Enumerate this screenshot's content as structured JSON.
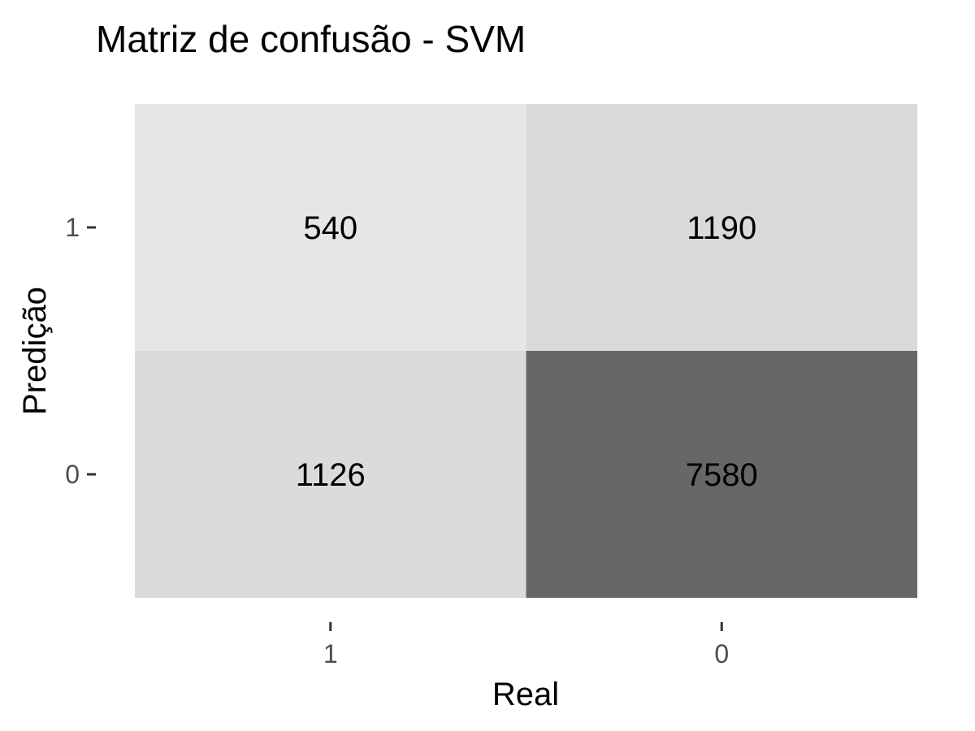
{
  "chart_data": {
    "type": "heatmap",
    "title": "Matriz de confusão - SVM",
    "xlabel": "Real",
    "ylabel": "Predição",
    "x_categories": [
      "1",
      "0"
    ],
    "y_categories": [
      "1",
      "0"
    ],
    "cells": [
      {
        "x": "1",
        "y": "1",
        "value": 540,
        "label": "540"
      },
      {
        "x": "0",
        "y": "1",
        "value": 1190,
        "label": "1190"
      },
      {
        "x": "1",
        "y": "0",
        "value": 1126,
        "label": "1126"
      },
      {
        "x": "0",
        "y": "0",
        "value": 7580,
        "label": "7580"
      }
    ],
    "color_scale": {
      "low": "#e6e6e6",
      "high": "#676767"
    },
    "legend": "none",
    "grid": false
  }
}
